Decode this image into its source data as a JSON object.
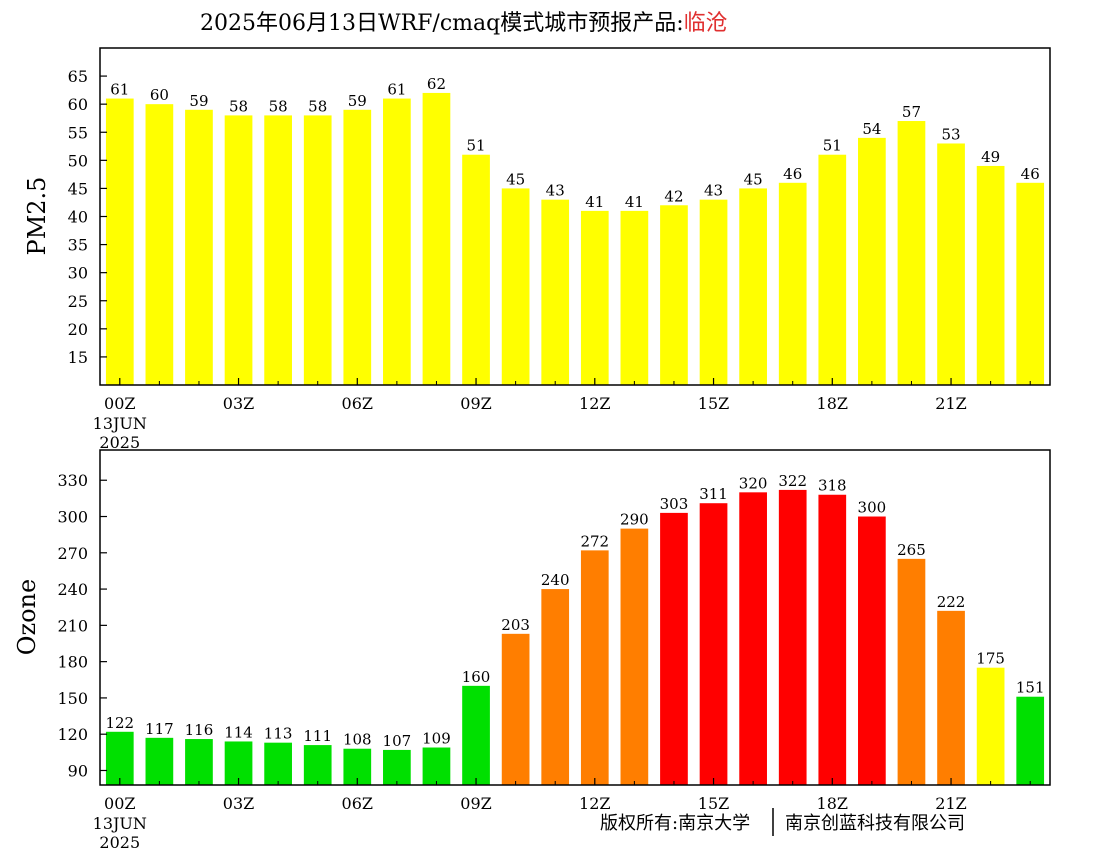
{
  "title": {
    "prefix": "2025年06月13日WRF/cmaq模式城市预报产品:",
    "city": "临沧",
    "city_color": "#e03030"
  },
  "copyright": {
    "left": "版权所有:南京大学",
    "right": "南京创蓝科技有限公司"
  },
  "chart_data": [
    {
      "type": "bar",
      "ylabel": "PM2.5",
      "ylim": [
        10,
        70
      ],
      "yticks": [
        15,
        20,
        25,
        30,
        35,
        40,
        45,
        50,
        55,
        60,
        65
      ],
      "x_tick_labels": [
        "00Z",
        "03Z",
        "06Z",
        "09Z",
        "12Z",
        "15Z",
        "18Z",
        "21Z"
      ],
      "x_sub_label": [
        "13JUN",
        "2025"
      ],
      "values": [
        61,
        60,
        59,
        58,
        58,
        58,
        59,
        61,
        62,
        51,
        45,
        43,
        41,
        41,
        42,
        43,
        45,
        46,
        51,
        54,
        57,
        53,
        49,
        46
      ],
      "bar_colors": [
        "#ffff00"
      ]
    },
    {
      "type": "bar",
      "ylabel": "Ozone",
      "ylim": [
        78,
        355
      ],
      "yticks": [
        90,
        120,
        150,
        180,
        210,
        240,
        270,
        300,
        330
      ],
      "x_tick_labels": [
        "00Z",
        "03Z",
        "06Z",
        "09Z",
        "12Z",
        "15Z",
        "18Z",
        "21Z"
      ],
      "x_sub_label": [
        "13JUN",
        "2025"
      ],
      "values": [
        122,
        117,
        116,
        114,
        113,
        111,
        108,
        107,
        109,
        160,
        203,
        240,
        272,
        290,
        303,
        311,
        320,
        322,
        318,
        300,
        265,
        222,
        175,
        151
      ],
      "bar_colors": [
        "#00e000",
        "#00e000",
        "#00e000",
        "#00e000",
        "#00e000",
        "#00e000",
        "#00e000",
        "#00e000",
        "#00e000",
        "#00e000",
        "#ff7e00",
        "#ff7e00",
        "#ff7e00",
        "#ff7e00",
        "#ff0000",
        "#ff0000",
        "#ff0000",
        "#ff0000",
        "#ff0000",
        "#ff0000",
        "#ff7e00",
        "#ff7e00",
        "#ffff00",
        "#00e000"
      ]
    }
  ]
}
